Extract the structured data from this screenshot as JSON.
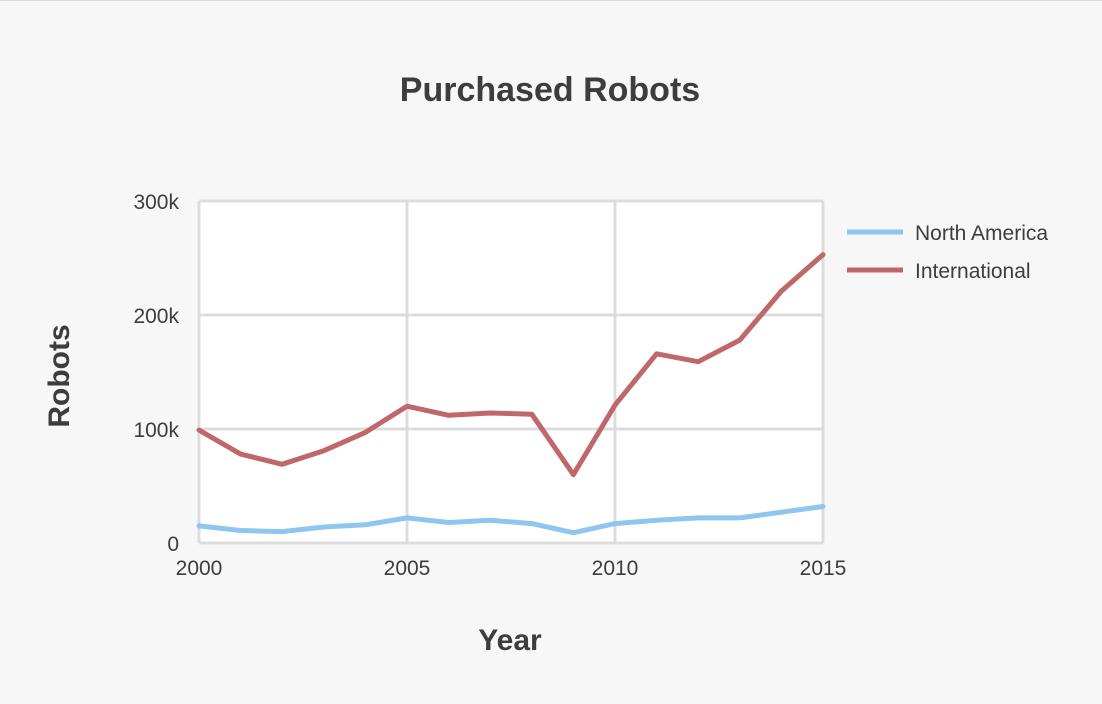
{
  "chart_data": {
    "type": "line",
    "title": "Purchased Robots",
    "xlabel": "Year",
    "ylabel": "Robots",
    "xlim": [
      2000,
      2015
    ],
    "ylim": [
      0,
      300000
    ],
    "x_ticks": [
      {
        "value": 2000,
        "label": "2000"
      },
      {
        "value": 2005,
        "label": "2005"
      },
      {
        "value": 2010,
        "label": "2010"
      },
      {
        "value": 2015,
        "label": "2015"
      }
    ],
    "y_ticks": [
      {
        "value": 0,
        "label": "0"
      },
      {
        "value": 100000,
        "label": "100k"
      },
      {
        "value": 200000,
        "label": "200k"
      },
      {
        "value": 300000,
        "label": "300k"
      }
    ],
    "grid": true,
    "legend_position": "right",
    "x": [
      2000,
      2001,
      2002,
      2003,
      2004,
      2005,
      2006,
      2007,
      2008,
      2009,
      2010,
      2011,
      2012,
      2013,
      2014,
      2015
    ],
    "series": [
      {
        "name": "North America",
        "color": "#8ec6f0",
        "values": [
          15000,
          11000,
          10000,
          14000,
          16000,
          22000,
          18000,
          20000,
          17000,
          9000,
          17000,
          20000,
          22000,
          22000,
          27000,
          32000
        ]
      },
      {
        "name": "International",
        "color": "#c0676a",
        "values": [
          99000,
          78000,
          69000,
          81000,
          97000,
          120000,
          112000,
          114000,
          113000,
          60000,
          121000,
          166000,
          159000,
          178000,
          221000,
          253000
        ]
      }
    ]
  }
}
